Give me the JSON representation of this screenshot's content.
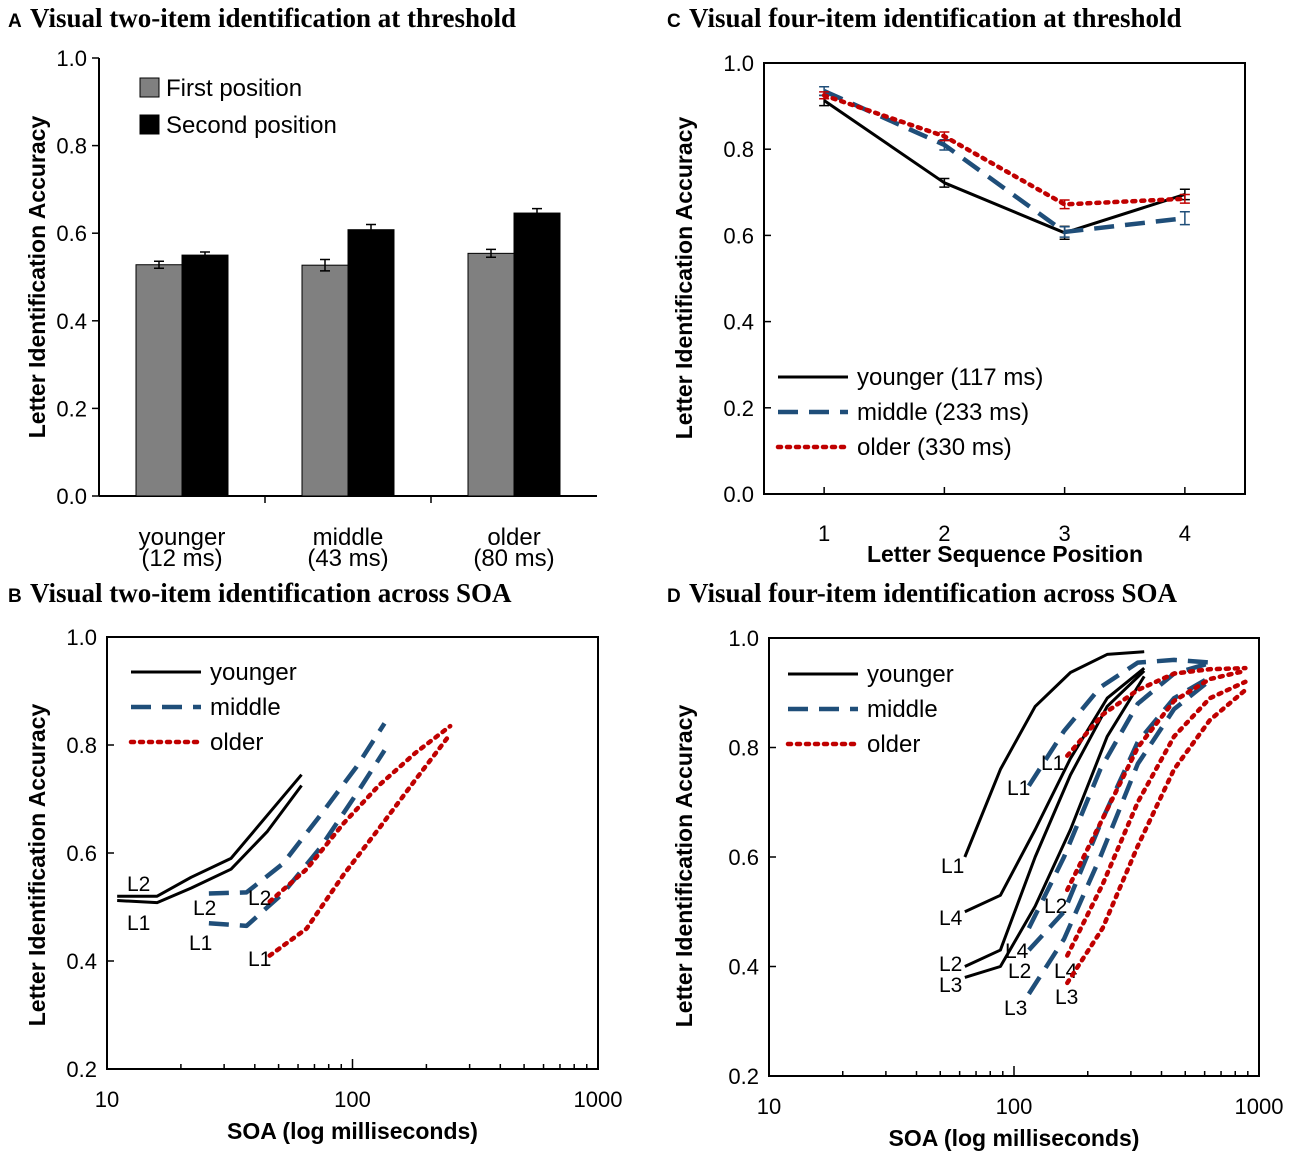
{
  "colors": {
    "first_position": "#808080",
    "second_position": "#000000",
    "younger": "#000000",
    "middle": "#1f4e79",
    "older": "#c00000"
  },
  "chart_data": [
    {
      "panel": "A",
      "type": "bar",
      "title": "Visual two-item identification at threshold",
      "xlabel": "",
      "ylabel": "Letter Identification Accuracy",
      "ylim": [
        0,
        1
      ],
      "yticks": [
        "0.0",
        "0.2",
        "0.4",
        "0.6",
        "0.8",
        "1.0"
      ],
      "categories": [
        [
          "younger",
          "(12 ms)"
        ],
        [
          "middle",
          "(43 ms)"
        ],
        [
          "older",
          "(80 ms)"
        ]
      ],
      "legend": "top-left",
      "series": [
        {
          "name": "First position",
          "values": [
            0.528,
            0.527,
            0.554
          ],
          "errors": [
            0.008,
            0.013,
            0.009
          ]
        },
        {
          "name": "Second position",
          "values": [
            0.55,
            0.608,
            0.646
          ],
          "errors": [
            0.007,
            0.012,
            0.01
          ]
        }
      ]
    },
    {
      "panel": "B",
      "type": "line",
      "title": "Visual two-item identification across SOA",
      "xlabel": "SOA (log milliseconds)",
      "ylabel": "Letter Identification Accuracy",
      "xscale": "log",
      "xlim": [
        10,
        1000
      ],
      "ylim": [
        0.2,
        1
      ],
      "xticks": [
        "10",
        "100",
        "1000"
      ],
      "yticks": [
        "0.2",
        "0.4",
        "0.6",
        "0.8",
        "1.0"
      ],
      "legend": "top-left",
      "groups": [
        {
          "name": "younger",
          "style": "solid",
          "lines": [
            {
              "label": "L2",
              "points": [
                [
                  11,
                  0.52
                ],
                [
                  16,
                  0.52
                ],
                [
                  22,
                  0.555
                ],
                [
                  32,
                  0.59
                ],
                [
                  45,
                  0.67
                ],
                [
                  62,
                  0.745
                ]
              ]
            },
            {
              "label": "L1",
              "points": [
                [
                  11,
                  0.512
                ],
                [
                  16,
                  0.508
                ],
                [
                  22,
                  0.535
                ],
                [
                  32,
                  0.57
                ],
                [
                  45,
                  0.64
                ],
                [
                  62,
                  0.725
                ]
              ]
            }
          ]
        },
        {
          "name": "middle",
          "style": "dashed",
          "lines": [
            {
              "label": "L2",
              "points": [
                [
                  26,
                  0.525
                ],
                [
                  37,
                  0.527
                ],
                [
                  52,
                  0.58
                ],
                [
                  74,
                  0.67
                ],
                [
                  104,
                  0.76
                ],
                [
                  135,
                  0.84
                ]
              ]
            },
            {
              "label": "L1",
              "points": [
                [
                  26,
                  0.47
                ],
                [
                  37,
                  0.465
                ],
                [
                  52,
                  0.525
                ],
                [
                  74,
                  0.61
                ],
                [
                  104,
                  0.71
                ],
                [
                  135,
                  0.79
                ]
              ]
            }
          ]
        },
        {
          "name": "older",
          "style": "dotted",
          "lines": [
            {
              "label": "L2",
              "points": [
                [
                  46,
                  0.51
                ],
                [
                  65,
                  0.57
                ],
                [
                  92,
                  0.655
                ],
                [
                  128,
                  0.725
                ],
                [
                  180,
                  0.785
                ],
                [
                  250,
                  0.835
                ]
              ]
            },
            {
              "label": "L1",
              "points": [
                [
                  46,
                  0.41
                ],
                [
                  65,
                  0.46
                ],
                [
                  92,
                  0.56
                ],
                [
                  128,
                  0.645
                ],
                [
                  180,
                  0.735
                ],
                [
                  250,
                  0.82
                ]
              ]
            }
          ]
        }
      ]
    },
    {
      "panel": "C",
      "type": "line",
      "title": "Visual four-item identification at threshold",
      "xlabel": "Letter Sequence Position",
      "ylabel": "Letter Identification Accuracy",
      "xlim": [
        0.5,
        4.5
      ],
      "ylim": [
        0,
        1
      ],
      "x": [
        1,
        2,
        3,
        4
      ],
      "xticks": [
        "1",
        "2",
        "3",
        "4"
      ],
      "yticks": [
        "0.0",
        "0.2",
        "0.4",
        "0.6",
        "0.8",
        "1.0"
      ],
      "legend": "bottom-left",
      "series": [
        {
          "name": "younger (117 ms)",
          "style": "solid",
          "values": [
            0.913,
            0.722,
            0.606,
            0.695
          ],
          "errors": [
            0.012,
            0.01,
            0.015,
            0.012
          ]
        },
        {
          "name": "middle (233 ms)",
          "style": "dashed",
          "values": [
            0.935,
            0.81,
            0.608,
            0.64
          ],
          "errors": [
            0.01,
            0.012,
            0.012,
            0.015
          ]
        },
        {
          "name": "older (330 ms)",
          "style": "dotted",
          "values": [
            0.925,
            0.83,
            0.672,
            0.685
          ],
          "errors": [
            0.008,
            0.01,
            0.01,
            0.01
          ]
        }
      ]
    },
    {
      "panel": "D",
      "type": "line",
      "title": "Visual four-item identification across SOA",
      "xlabel": "SOA (log milliseconds)",
      "ylabel": "Letter Identification Accuracy",
      "xscale": "log",
      "xlim": [
        10,
        1000
      ],
      "ylim": [
        0.2,
        1
      ],
      "xticks": [
        "10",
        "100",
        "1000"
      ],
      "yticks": [
        "0.2",
        "0.4",
        "0.6",
        "0.8",
        "1.0"
      ],
      "legend": "top-left",
      "groups": [
        {
          "name": "younger",
          "style": "solid",
          "lines": [
            {
              "label": "L1",
              "points": [
                [
                  63,
                  0.6
                ],
                [
                  88,
                  0.76
                ],
                [
                  122,
                  0.875
                ],
                [
                  170,
                  0.937
                ],
                [
                  240,
                  0.97
                ],
                [
                  340,
                  0.975
                ]
              ]
            },
            {
              "label": "L4",
              "points": [
                [
                  63,
                  0.5
                ],
                [
                  88,
                  0.53
                ],
                [
                  122,
                  0.65
                ],
                [
                  170,
                  0.78
                ],
                [
                  240,
                  0.89
                ],
                [
                  340,
                  0.945
                ]
              ]
            },
            {
              "label": "L2",
              "points": [
                [
                  63,
                  0.4
                ],
                [
                  88,
                  0.43
                ],
                [
                  122,
                  0.6
                ],
                [
                  170,
                  0.75
                ],
                [
                  240,
                  0.875
                ],
                [
                  340,
                  0.94
                ]
              ]
            },
            {
              "label": "L3",
              "points": [
                [
                  63,
                  0.38
                ],
                [
                  88,
                  0.4
                ],
                [
                  122,
                  0.51
                ],
                [
                  170,
                  0.65
                ],
                [
                  240,
                  0.82
                ],
                [
                  340,
                  0.93
                ]
              ]
            }
          ]
        },
        {
          "name": "middle",
          "style": "dashed",
          "lines": [
            {
              "label": "L1",
              "points": [
                [
                  115,
                  0.73
                ],
                [
                  160,
                  0.83
                ],
                [
                  225,
                  0.91
                ],
                [
                  320,
                  0.955
                ],
                [
                  450,
                  0.96
                ],
                [
                  640,
                  0.955
                ]
              ]
            },
            {
              "label": "L2",
              "points": [
                [
                  115,
                  0.47
                ],
                [
                  160,
                  0.6
                ],
                [
                  225,
                  0.76
                ],
                [
                  320,
                  0.88
                ],
                [
                  450,
                  0.935
                ],
                [
                  640,
                  0.955
                ]
              ]
            },
            {
              "label": "L4",
              "points": [
                [
                  115,
                  0.43
                ],
                [
                  160,
                  0.5
                ],
                [
                  225,
                  0.66
                ],
                [
                  320,
                  0.81
                ],
                [
                  450,
                  0.89
                ],
                [
                  640,
                  0.93
                ]
              ]
            },
            {
              "label": "L3",
              "points": [
                [
                  115,
                  0.35
                ],
                [
                  160,
                  0.45
                ],
                [
                  225,
                  0.6
                ],
                [
                  320,
                  0.77
                ],
                [
                  450,
                  0.87
                ],
                [
                  640,
                  0.925
                ]
              ]
            }
          ]
        },
        {
          "name": "older",
          "style": "dotted",
          "lines": [
            {
              "label": "L1",
              "points": [
                [
                  165,
                  0.785
                ],
                [
                  230,
                  0.86
                ],
                [
                  320,
                  0.905
                ],
                [
                  450,
                  0.935
                ],
                [
                  630,
                  0.943
                ],
                [
                  880,
                  0.945
                ]
              ]
            },
            {
              "label": "L2",
              "points": [
                [
                  165,
                  0.54
                ],
                [
                  230,
                  0.67
                ],
                [
                  320,
                  0.8
                ],
                [
                  450,
                  0.885
                ],
                [
                  630,
                  0.925
                ],
                [
                  880,
                  0.94
                ]
              ]
            },
            {
              "label": "L4",
              "points": [
                [
                  165,
                  0.42
                ],
                [
                  230,
                  0.55
                ],
                [
                  320,
                  0.7
                ],
                [
                  450,
                  0.82
                ],
                [
                  630,
                  0.89
                ],
                [
                  880,
                  0.92
                ]
              ]
            },
            {
              "label": "L3",
              "points": [
                [
                  165,
                  0.37
                ],
                [
                  230,
                  0.47
                ],
                [
                  320,
                  0.62
                ],
                [
                  450,
                  0.76
                ],
                [
                  630,
                  0.85
                ],
                [
                  880,
                  0.905
                ]
              ]
            }
          ]
        }
      ]
    }
  ]
}
